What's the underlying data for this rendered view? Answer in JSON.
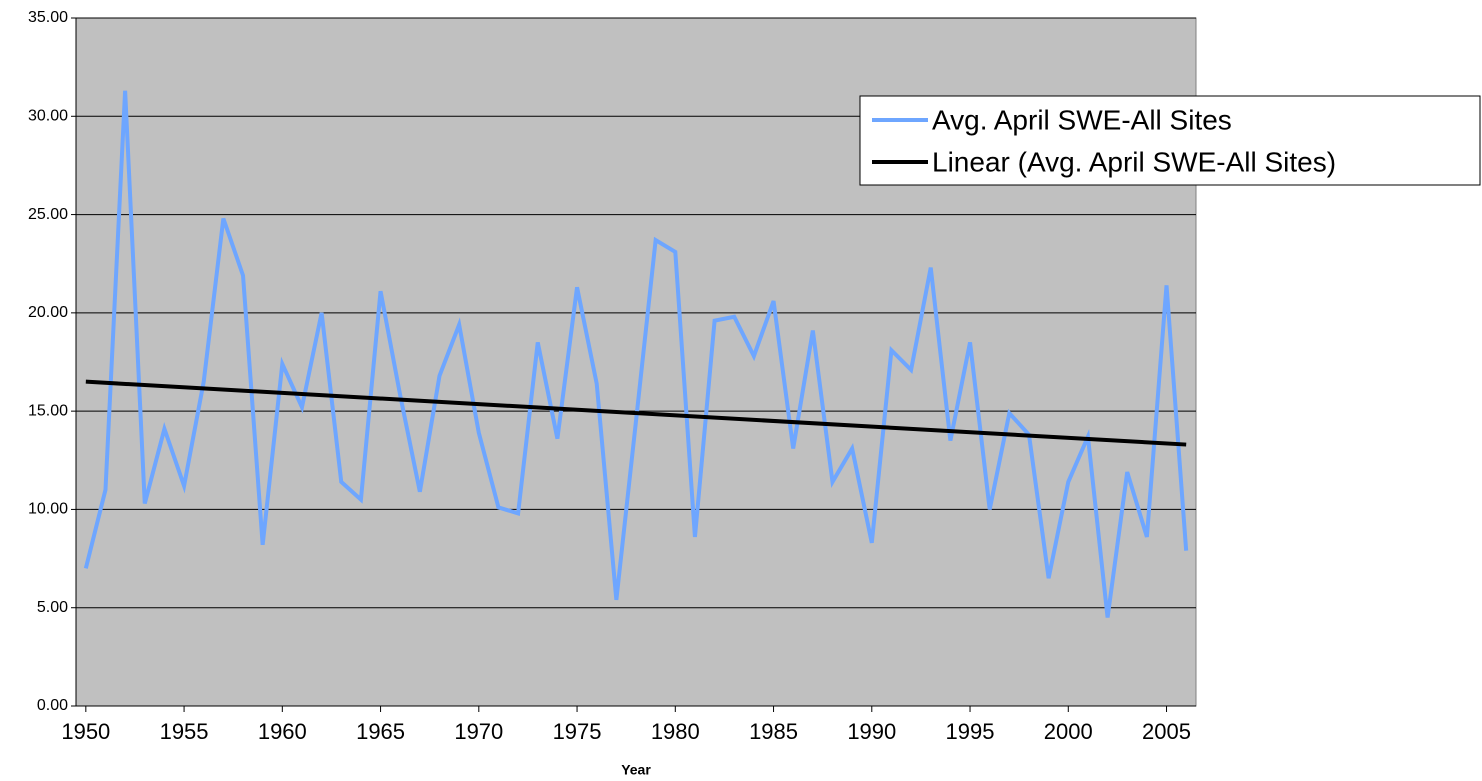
{
  "chart_data": {
    "type": "line",
    "x_label": "Year",
    "x": [
      1950,
      1951,
      1952,
      1953,
      1954,
      1955,
      1956,
      1957,
      1958,
      1959,
      1960,
      1961,
      1962,
      1963,
      1964,
      1965,
      1966,
      1967,
      1968,
      1969,
      1970,
      1971,
      1972,
      1973,
      1974,
      1975,
      1976,
      1977,
      1978,
      1979,
      1980,
      1981,
      1982,
      1983,
      1984,
      1985,
      1986,
      1987,
      1988,
      1989,
      1990,
      1991,
      1992,
      1993,
      1994,
      1995,
      1996,
      1997,
      1998,
      1999,
      2000,
      2001,
      2002,
      2003,
      2004,
      2005,
      2006
    ],
    "series": [
      {
        "name": "Avg. April SWE-All Sites",
        "color": "#6ea6ff",
        "values": [
          7.0,
          11.0,
          31.3,
          10.3,
          14.1,
          11.2,
          16.5,
          24.8,
          21.9,
          8.2,
          17.4,
          15.2,
          20.0,
          11.4,
          10.5,
          21.1,
          15.8,
          10.9,
          16.8,
          19.4,
          13.9,
          10.1,
          9.8,
          18.5,
          13.6,
          21.3,
          16.4,
          5.4,
          14.5,
          23.7,
          23.1,
          8.6,
          19.6,
          19.8,
          17.8,
          20.6,
          13.1,
          19.1,
          11.4,
          13.1,
          8.3,
          18.1,
          17.1,
          22.3,
          13.5,
          18.5,
          10.0,
          14.9,
          13.8,
          6.5,
          11.4,
          13.7,
          4.5,
          11.9,
          8.6,
          21.4,
          7.9
        ]
      },
      {
        "name": "Linear (Avg. April SWE-All Sites)",
        "color": "#000000",
        "x": [
          1950,
          2006
        ],
        "values": [
          16.5,
          13.3
        ]
      }
    ],
    "xlim": [
      1949.5,
      2006.5
    ],
    "xticks": [
      1950,
      1955,
      1960,
      1965,
      1970,
      1975,
      1980,
      1985,
      1990,
      1995,
      2000,
      2005
    ],
    "ylim": [
      0,
      35
    ],
    "yticks": [
      {
        "value": 0,
        "label": "0.00"
      },
      {
        "value": 5,
        "label": "5.00"
      },
      {
        "value": 10,
        "label": "10.00"
      },
      {
        "value": 15,
        "label": "15.00"
      },
      {
        "value": 20,
        "label": "20.00"
      },
      {
        "value": 25,
        "label": "25.00"
      },
      {
        "value": 30,
        "label": "30.00"
      },
      {
        "value": 35,
        "label": "35.00"
      }
    ],
    "grid": true,
    "plot_background": "#c0c0c0",
    "legend": "upper right"
  }
}
